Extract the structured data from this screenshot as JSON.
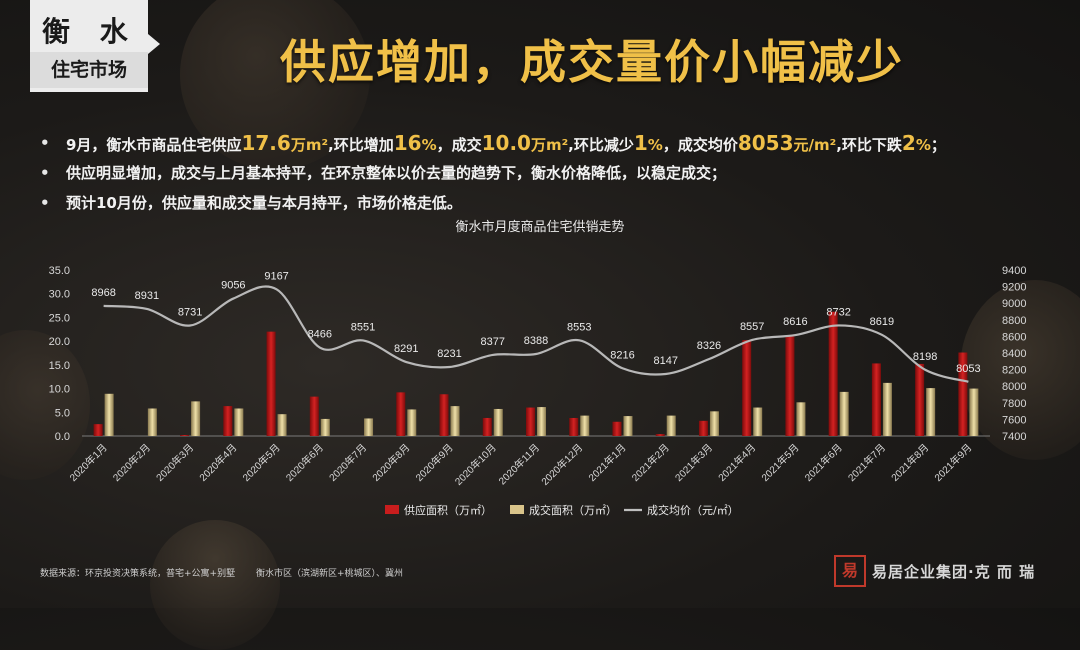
{
  "badge": {
    "city": "衡 水",
    "subtitle": "住宅市场"
  },
  "headline": "供应增加，成交量价小幅减少",
  "bullets": [
    {
      "parts": [
        {
          "t": "9月，衡水市商品住宅供应"
        },
        {
          "t": "17.6",
          "h": true
        },
        {
          "t": "万m²",
          "u": true
        },
        {
          "t": ",环比增加"
        },
        {
          "t": "16",
          "h": true
        },
        {
          "t": "%",
          "u": true
        },
        {
          "t": "，成交"
        },
        {
          "t": "10.0",
          "h": true
        },
        {
          "t": "万m²",
          "u": true
        },
        {
          "t": ",环比减少"
        },
        {
          "t": "1",
          "h": true
        },
        {
          "t": "%",
          "u": true
        },
        {
          "t": "，成交均价"
        },
        {
          "t": "8053",
          "h": true
        },
        {
          "t": "元/m²",
          "u": true
        },
        {
          "t": ",环比下跌"
        },
        {
          "t": "2",
          "h": true
        },
        {
          "t": "%",
          "u": true
        },
        {
          "t": "；"
        }
      ]
    },
    {
      "parts": [
        {
          "t": "供应明显增加，成交与上月基本持平，在环京整体以价去量的趋势下，衡水价格降低，以稳定成交；"
        }
      ]
    },
    {
      "parts": [
        {
          "t": "预计10月份，供应量和成交量与本月持平，市场价格走低。"
        }
      ]
    }
  ],
  "chart_data": {
    "type": "bar",
    "title": "衡水市月度商品住宅供销走势",
    "categories": [
      "2020年1月",
      "2020年2月",
      "2020年3月",
      "2020年4月",
      "2020年5月",
      "2020年6月",
      "2020年7月",
      "2020年8月",
      "2020年9月",
      "2020年10月",
      "2020年11月",
      "2020年12月",
      "2021年1月",
      "2021年2月",
      "2021年3月",
      "2021年4月",
      "2021年5月",
      "2021年6月",
      "2021年7月",
      "2021年8月",
      "2021年9月"
    ],
    "series": [
      {
        "name": "供应面积（万㎡）",
        "type": "bar",
        "axis": "left",
        "color": "#c81d1d",
        "values": [
          2.5,
          0,
          0.2,
          6.3,
          22,
          8.3,
          0,
          9.2,
          8.8,
          3.8,
          6.0,
          3.8,
          3.0,
          0.4,
          3.2,
          20.2,
          21.0,
          26.2,
          15.3,
          15.2,
          17.6
        ]
      },
      {
        "name": "成交面积（万㎡）",
        "type": "bar",
        "axis": "left",
        "color": "#d9c48a",
        "values": [
          8.9,
          5.8,
          7.3,
          5.8,
          4.6,
          3.6,
          3.7,
          5.6,
          6.3,
          5.7,
          6.1,
          4.3,
          4.2,
          4.3,
          5.2,
          6.0,
          7.1,
          9.3,
          11.2,
          10.1,
          10.0
        ]
      },
      {
        "name": "成交均价（元/㎡）",
        "type": "line",
        "axis": "right",
        "color": "#bfbfbf",
        "values": [
          8968,
          8931,
          8731,
          9056,
          9167,
          8466,
          8551,
          8291,
          8231,
          8377,
          8388,
          8553,
          8216,
          8147,
          8326,
          8557,
          8616,
          8732,
          8619,
          8198,
          8053
        ]
      }
    ],
    "ylim_left": [
      0,
      35
    ],
    "yticks_left": [
      "0.0",
      "5.0",
      "10.0",
      "15.0",
      "20.0",
      "25.0",
      "30.0",
      "35.0"
    ],
    "ylim_right": [
      7400,
      9400
    ],
    "yticks_right": [
      "7400",
      "7600",
      "7800",
      "8000",
      "8200",
      "8400",
      "8600",
      "8800",
      "9000",
      "9200",
      "9400"
    ],
    "legend_position": "bottom"
  },
  "footer": {
    "source": [
      "数据来源：环京投资决策系统，普宅+公寓+别墅",
      "衡水市区（滨湖新区+桃城区）、冀州"
    ],
    "logo_seal": "易",
    "logo_text": "易居企业集团·克 而 瑞"
  }
}
